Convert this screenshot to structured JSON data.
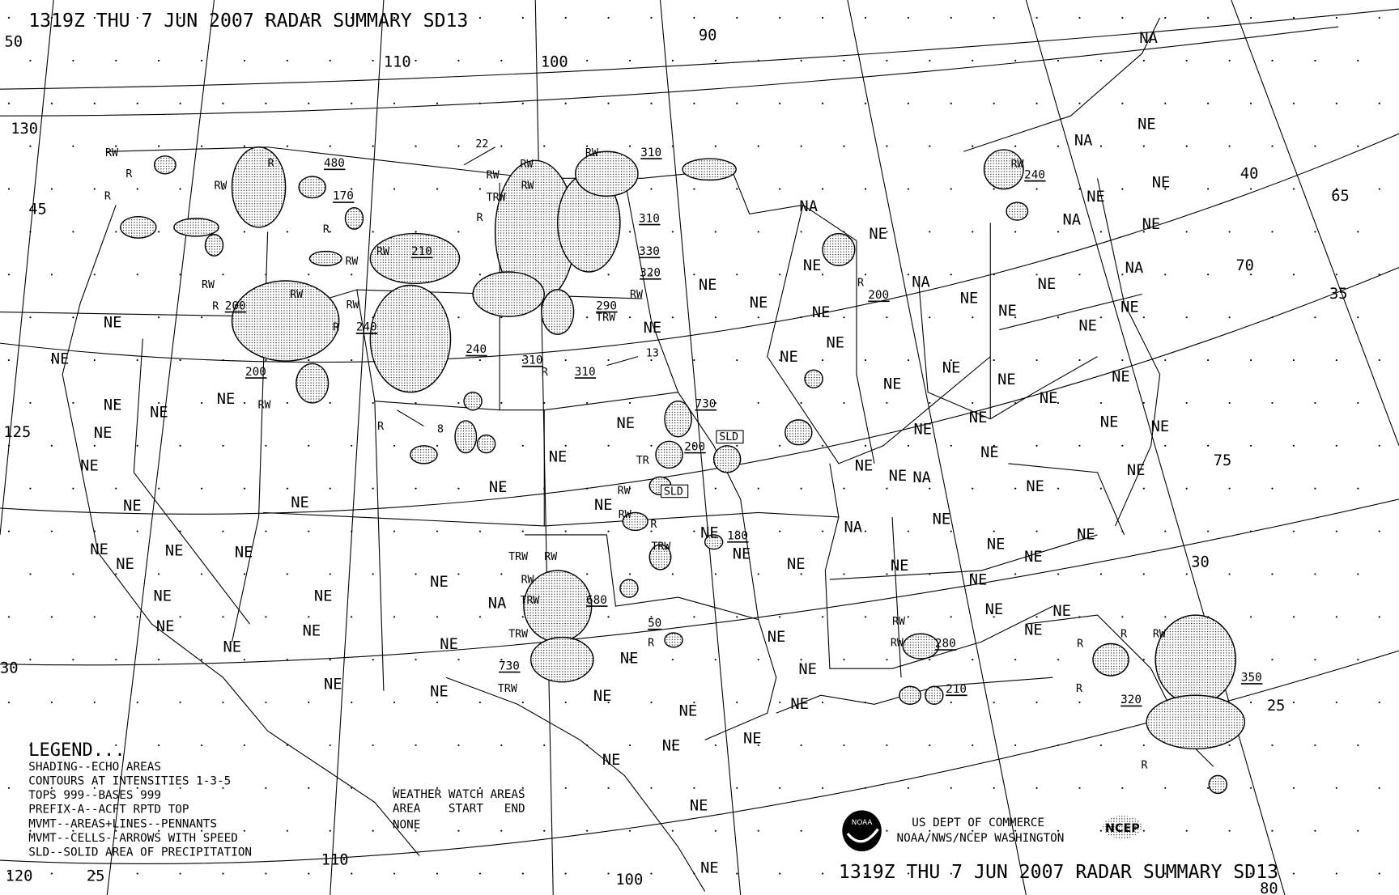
{
  "title_top": "1319Z THU  7 JUN 2007 RADAR SUMMARY SD13",
  "title_bottom": "1319Z THU  7 JUN 2007 RADAR SUMMARY SD13",
  "legend": {
    "heading": "LEGEND...",
    "lines": [
      "SHADING--ECHO AREAS",
      "CONTOURS AT INTENSITIES 1-3-5",
      "TOPS 999--BASES 999",
      "PREFIX-A--ACFT RPTD TOP",
      "MVMT--AREAS+LINES--PENNANTS",
      "MVMT--CELLS--ARROWS WITH SPEED",
      "SLD--SOLID AREA OF PRECIPITATION"
    ]
  },
  "watch": {
    "heading": "WEATHER WATCH AREAS",
    "columns": "AREA    START   END",
    "value": "NONE"
  },
  "credits": {
    "line1": "US DEPT OF COMMERCE",
    "line2": "NOAA/NWS/NCEP WASHINGTON",
    "noaa_logo": "NOAA",
    "ncep_logo": "NCEP"
  },
  "grid_labels": [
    "50",
    "130",
    "45",
    "125",
    "110",
    "100",
    "90",
    "40",
    "65",
    "70",
    "35",
    "75",
    "30",
    "25",
    "120",
    "25",
    "110",
    "100",
    "80",
    "30"
  ],
  "motion_labels": [
    "22",
    "13",
    "8"
  ],
  "status_labels": [
    "NE",
    "NE",
    "NE",
    "NE",
    "NE",
    "NE",
    "NE",
    "NE",
    "NE",
    "NE",
    "NE",
    "NE",
    "NE",
    "NE",
    "NE",
    "NE",
    "NE",
    "NE",
    "NE",
    "NE",
    "NE",
    "NE",
    "NE",
    "NE",
    "NE",
    "NE",
    "NE",
    "NE",
    "NE",
    "NE",
    "NE",
    "NE",
    "NE",
    "NE",
    "NE",
    "NE",
    "NE",
    "NE",
    "NE",
    "NE",
    "NE",
    "NE",
    "NE",
    "NE",
    "NE",
    "NE",
    "NE",
    "NE",
    "NE",
    "NE",
    "NE",
    "NE",
    "NE",
    "NE",
    "NE",
    "NE",
    "NE",
    "NE",
    "NE",
    "NE",
    "NE",
    "NE",
    "NE",
    "NE",
    "NE",
    "NE",
    "NE",
    "NE",
    "NE",
    "NE",
    "NE",
    "NE",
    "NE",
    "NE",
    "NE",
    "NE",
    "NE",
    "NE",
    "NE",
    "NE",
    "NA",
    "NA",
    "NA",
    "NA",
    "NA",
    "NA",
    "NA",
    "NA",
    "NA"
  ],
  "tops": [
    "480",
    "170",
    "310",
    "310",
    "330",
    "320",
    "210",
    "200",
    "240",
    "240",
    "200",
    "290",
    "310",
    "310",
    "200",
    "730",
    "200",
    "180",
    "680",
    "50",
    "730",
    "280",
    "210",
    "320",
    "350",
    "240"
  ],
  "precip_types": [
    "RW",
    "R",
    "R",
    "RW",
    "R",
    "RW",
    "RW",
    "R",
    "RW",
    "RW",
    "RW",
    "R",
    "R",
    "RW",
    "R",
    "R",
    "RW",
    "TRW",
    "RW",
    "RW",
    "RW",
    "RW",
    "TRW",
    "R",
    "RW",
    "RW",
    "R",
    "TRW",
    "TRW",
    "RW",
    "RW",
    "TRW",
    "TRW",
    "TRW",
    "R",
    "RW",
    "RW",
    "R",
    "R",
    "RW",
    "R",
    "R",
    "RW",
    "R",
    "TR"
  ],
  "sld_boxes": [
    "SLD",
    "SLD"
  ]
}
